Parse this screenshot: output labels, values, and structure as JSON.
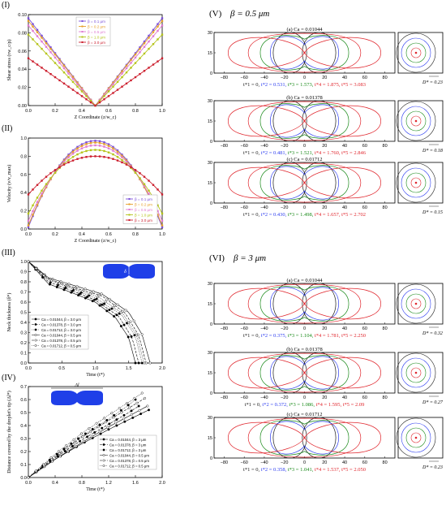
{
  "figure": {
    "panels": {
      "I": {
        "label": "(I)"
      },
      "II": {
        "label": "(II)"
      },
      "III": {
        "label": "(III)"
      },
      "IV": {
        "label": "(IV)"
      },
      "V": {
        "label": "(V)",
        "title": "β = 0.5 μm"
      },
      "VI": {
        "label": "(VI)",
        "title": "β = 3 μm"
      }
    },
    "colors": {
      "beta01": "#7b4fd9",
      "beta02": "#e6a02a",
      "beta05": "#e07ad0",
      "beta10": "#b5c41a",
      "beta30": "#cc1f2e",
      "t1": "#1a1a1a",
      "t2": "#2f3ff0",
      "t3": "#1a8a1a",
      "t4": "#e0262d",
      "drop": "#1f3fe8"
    }
  },
  "chart_data": [
    {
      "id": "I",
      "type": "line",
      "xlabel": "Z Coordinate (z/w_c)",
      "ylabel": "Shear stress (τw_c/ρ)",
      "xlim": [
        0,
        1
      ],
      "ylim": [
        0,
        0.1
      ],
      "xticks": [
        "0.0",
        "0.2",
        "0.4",
        "0.6",
        "0.8",
        "1.0"
      ],
      "yticks": [
        "0.00",
        "0.02",
        "0.04",
        "0.06",
        "0.08",
        "0.10"
      ],
      "legend": "top-center",
      "series": [
        {
          "name": "β = 0.1 μm",
          "color_key": "beta01",
          "x": [
            0,
            0.25,
            0.5,
            0.75,
            1
          ],
          "y": [
            0.096,
            0.048,
            0.0,
            0.048,
            0.096
          ]
        },
        {
          "name": "β = 0.2 μm",
          "color_key": "beta02",
          "x": [
            0,
            0.25,
            0.5,
            0.75,
            1
          ],
          "y": [
            0.093,
            0.047,
            0.0,
            0.047,
            0.093
          ]
        },
        {
          "name": "β = 0.5 μm",
          "color_key": "beta05",
          "x": [
            0,
            0.25,
            0.5,
            0.75,
            1
          ],
          "y": [
            0.088,
            0.044,
            0.0,
            0.044,
            0.088
          ]
        },
        {
          "name": "β = 1.0 μm",
          "color_key": "beta10",
          "x": [
            0,
            0.25,
            0.5,
            0.75,
            1
          ],
          "y": [
            0.078,
            0.039,
            0.0,
            0.039,
            0.078
          ]
        },
        {
          "name": "β = 3.0 μm",
          "color_key": "beta30",
          "x": [
            0,
            0.25,
            0.5,
            0.75,
            1
          ],
          "y": [
            0.052,
            0.026,
            0.0,
            0.026,
            0.052
          ]
        }
      ]
    },
    {
      "id": "II",
      "type": "line",
      "xlabel": "Z Coordinate (z/w_c)",
      "ylabel": "Velocity (v/v_max)",
      "xlim": [
        0,
        1
      ],
      "ylim": [
        0,
        1.0
      ],
      "xticks": [
        "0.0",
        "0.2",
        "0.4",
        "0.6",
        "0.8",
        "1.0"
      ],
      "yticks": [
        "0.0",
        "0.2",
        "0.4",
        "0.6",
        "0.8",
        "1.0"
      ],
      "legend": "bottom-right",
      "series": [
        {
          "name": "β = 0.1 μm",
          "color_key": "beta01",
          "x": [
            0,
            0.5,
            1
          ],
          "y": [
            0.02,
            0.97,
            0.02
          ],
          "shape": "parabola"
        },
        {
          "name": "β = 0.2 μm",
          "color_key": "beta02",
          "x": [
            0,
            0.5,
            1
          ],
          "y": [
            0.04,
            0.95,
            0.04
          ],
          "shape": "parabola"
        },
        {
          "name": "β = 0.5 μm",
          "color_key": "beta05",
          "x": [
            0,
            0.5,
            1
          ],
          "y": [
            0.09,
            0.92,
            0.09
          ],
          "shape": "parabola"
        },
        {
          "name": "β = 1.0 μm",
          "color_key": "beta10",
          "x": [
            0,
            0.5,
            1
          ],
          "y": [
            0.17,
            0.87,
            0.17
          ],
          "shape": "parabola"
        },
        {
          "name": "β = 3.0 μm",
          "color_key": "beta30",
          "x": [
            0,
            0.5,
            1
          ],
          "y": [
            0.38,
            0.8,
            0.38
          ],
          "shape": "parabola"
        }
      ]
    },
    {
      "id": "III",
      "type": "line",
      "xlabel": "Time (t*)",
      "ylabel": "Neck thickness (δ*)",
      "xlim": [
        0,
        2.0
      ],
      "ylim": [
        0,
        1.0
      ],
      "xticks": [
        "0.0",
        "0.5",
        "1.0",
        "1.5",
        "2.0"
      ],
      "yticks": [
        "0.0",
        "0.1",
        "0.2",
        "0.3",
        "0.4",
        "0.5",
        "0.6",
        "0.7",
        "0.8",
        "0.9",
        "1.0"
      ],
      "legend": "bottom-left",
      "inset_label": "δ",
      "series": [
        {
          "name": "Ca = 0.01044, β = 3.0 μm",
          "marker": "filled-circle",
          "dash": "solid",
          "x": [
            0,
            0.3,
            0.7,
            1.0,
            1.3,
            1.5,
            1.6
          ],
          "y": [
            1.0,
            0.78,
            0.68,
            0.6,
            0.45,
            0.25,
            0.0
          ]
        },
        {
          "name": "Ca = 0.01378, β = 3.0 μm",
          "marker": "filled-circle",
          "dash": "dash",
          "x": [
            0,
            0.3,
            0.7,
            1.0,
            1.35,
            1.55,
            1.65
          ],
          "y": [
            1.0,
            0.8,
            0.7,
            0.62,
            0.46,
            0.25,
            0.0
          ]
        },
        {
          "name": "Ca = 0.01712, β = 3.0 μm",
          "marker": "filled-circle",
          "dash": "dot",
          "x": [
            0,
            0.3,
            0.7,
            1.0,
            1.4,
            1.6,
            1.7
          ],
          "y": [
            1.0,
            0.82,
            0.72,
            0.64,
            0.47,
            0.26,
            0.0
          ]
        },
        {
          "name": "Ca = 0.01044, β = 0.5 μm",
          "marker": "open-circle",
          "dash": "solid",
          "x": [
            0,
            0.3,
            0.7,
            1.1,
            1.5,
            1.7,
            1.82
          ],
          "y": [
            1.0,
            0.84,
            0.76,
            0.68,
            0.5,
            0.28,
            0.0
          ]
        },
        {
          "name": "Ca = 0.01378, β = 0.5 μm",
          "marker": "open-circle",
          "dash": "dash",
          "x": [
            0,
            0.3,
            0.7,
            1.1,
            1.45,
            1.65,
            1.76
          ],
          "y": [
            1.0,
            0.83,
            0.74,
            0.66,
            0.49,
            0.27,
            0.0
          ]
        },
        {
          "name": "Ca = 0.01712, β = 0.5 μm",
          "marker": "open-circle",
          "dash": "dot",
          "x": [
            0,
            0.3,
            0.7,
            1.05,
            1.42,
            1.62,
            1.73
          ],
          "y": [
            1.0,
            0.82,
            0.73,
            0.65,
            0.48,
            0.27,
            0.0
          ]
        }
      ]
    },
    {
      "id": "IV",
      "type": "line",
      "xlabel": "Time (t*)",
      "ylabel": "Distance covered by the droplet's tip (Δl*)",
      "xlim": [
        0,
        2.0
      ],
      "ylim": [
        0,
        0.7
      ],
      "xticks": [
        "0.0",
        "0.4",
        "0.8",
        "1.2",
        "1.6",
        "2.0"
      ],
      "yticks": [
        "0.0",
        "0.1",
        "0.2",
        "0.3",
        "0.4",
        "0.5",
        "0.6",
        "0.7"
      ],
      "legend": "bottom-right",
      "inset_label": "Δl",
      "series": [
        {
          "name": "Ca = 0.01044, β = 3 μm",
          "marker": "filled-circle",
          "dash": "solid",
          "x": [
            0,
            0.4,
            0.8,
            1.2,
            1.6,
            1.8
          ],
          "y": [
            0.0,
            0.14,
            0.26,
            0.37,
            0.47,
            0.52
          ]
        },
        {
          "name": "Ca = 0.01378, β = 3 μm",
          "marker": "filled-circle",
          "dash": "dash",
          "x": [
            0,
            0.4,
            0.8,
            1.2,
            1.5,
            1.65
          ],
          "y": [
            0.0,
            0.15,
            0.29,
            0.41,
            0.5,
            0.55
          ]
        },
        {
          "name": "Ca = 0.01712, β = 3 μm",
          "marker": "filled-circle",
          "dash": "dot",
          "x": [
            0,
            0.4,
            0.8,
            1.2,
            1.45,
            1.6
          ],
          "y": [
            0.0,
            0.17,
            0.32,
            0.45,
            0.54,
            0.6
          ]
        },
        {
          "name": "Ca = 0.01044, β = 0.5 μm",
          "marker": "open-circle",
          "dash": "solid",
          "x": [
            0,
            0.4,
            0.8,
            1.2,
            1.6,
            1.78
          ],
          "y": [
            0.0,
            0.14,
            0.27,
            0.39,
            0.5,
            0.55
          ]
        },
        {
          "name": "Ca = 0.01378, β = 0.5 μm",
          "marker": "open-circle",
          "dash": "dash",
          "x": [
            0,
            0.4,
            0.8,
            1.2,
            1.55,
            1.74
          ],
          "y": [
            0.0,
            0.16,
            0.31,
            0.44,
            0.55,
            0.61
          ]
        },
        {
          "name": "Ca = 0.01712, β = 0.5 μm",
          "marker": "open-circle",
          "dash": "dot",
          "x": [
            0,
            0.4,
            0.8,
            1.2,
            1.5,
            1.7
          ],
          "y": [
            0.0,
            0.18,
            0.34,
            0.48,
            0.58,
            0.65
          ]
        }
      ]
    }
  ],
  "shape_panels": {
    "xticks": [
      "−80",
      "−60",
      "−40",
      "−20",
      "0",
      "20",
      "40",
      "60",
      "80"
    ],
    "yticks": [
      "0",
      "15",
      "30"
    ],
    "V": [
      {
        "caption": "(a) Ca = 0.01044",
        "times": [
          "0",
          "0.531",
          "1.573",
          "1.875",
          "3.083"
        ],
        "dstar": "D* = 0.23",
        "red_scale": 1.0
      },
      {
        "caption": "(b) Ca = 0.01378",
        "times": [
          "0",
          "0.481",
          "1.521",
          "1.760",
          "2.846"
        ],
        "dstar": "D* = 0.18",
        "red_scale": 1.0
      },
      {
        "caption": "(c) Ca = 0.01712",
        "times": [
          "0",
          "0.430",
          "1.498",
          "1.657",
          "2.702"
        ],
        "dstar": "D* = 0.15",
        "red_scale": 1.0
      }
    ],
    "VI": [
      {
        "caption": "(a) Ca = 0.01044",
        "times": [
          "0",
          "0.375",
          "1.104",
          "1.781",
          "2.250"
        ],
        "dstar": "D* = 0.32",
        "red_scale": 1.0
      },
      {
        "caption": "(b) Ca = 0.01378",
        "times": [
          "0",
          "0.372",
          "1.086",
          "1.595",
          "2.09"
        ],
        "dstar": "D* = 0.27",
        "red_scale": 1.0
      },
      {
        "caption": "(c) Ca = 0.01712",
        "times": [
          "0",
          "0.358",
          "1.041",
          "1.537",
          "2.050"
        ],
        "dstar": "D* = 0.23",
        "red_scale": 1.0
      }
    ]
  }
}
